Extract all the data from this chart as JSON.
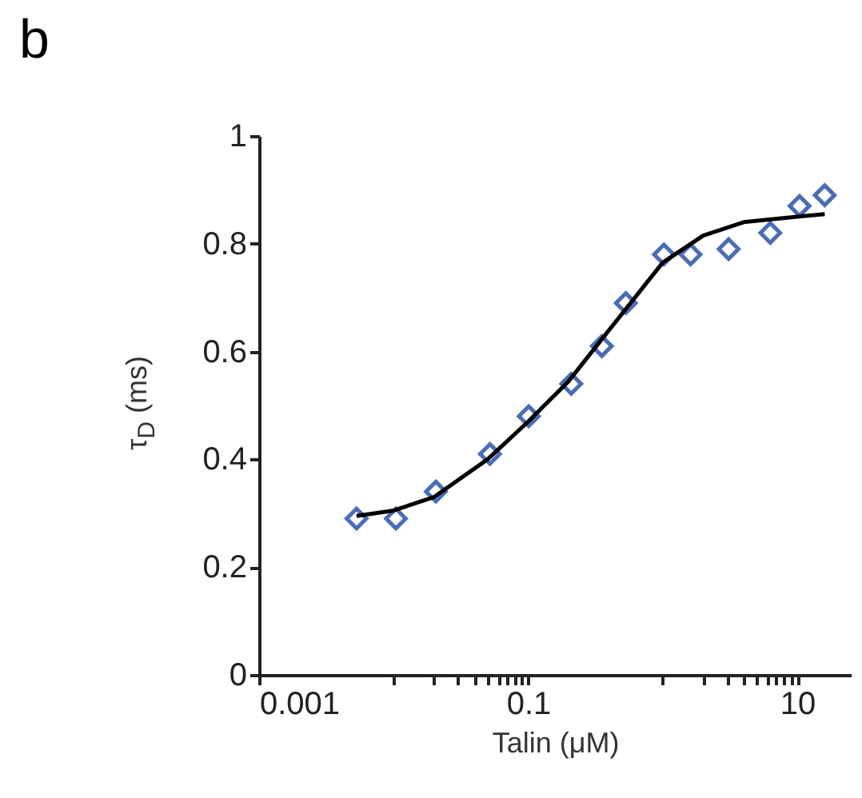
{
  "chart_data": {
    "type": "scatter",
    "title": "b",
    "xlabel": "Talin (μM)",
    "ylabel": "τ$_{D}$ (ms)",
    "log": "x",
    "xlim": [
      0.001,
      25
    ],
    "ylim": [
      0,
      1
    ],
    "xticks": [
      0.001,
      {
        "value": 0.01,
        "label": null
      },
      {
        "value": 0.02,
        "label": null
      },
      {
        "value": 0.03,
        "label": null
      },
      {
        "value": 0.04,
        "label": null
      },
      {
        "value": 0.05,
        "label": null
      },
      {
        "value": 0.06,
        "label": null
      },
      {
        "value": 0.07,
        "label": null
      },
      {
        "value": 0.08,
        "label": null
      },
      {
        "value": 0.09,
        "label": null
      },
      0.1,
      {
        "value": 1,
        "label": null
      },
      {
        "value": 2,
        "label": null
      },
      {
        "value": 3,
        "label": null
      },
      {
        "value": 4,
        "label": null
      },
      {
        "value": 5,
        "label": null
      },
      {
        "value": 6,
        "label": null
      },
      {
        "value": 7,
        "label": null
      },
      {
        "value": 8,
        "label": null
      },
      {
        "value": 9,
        "label": null
      },
      10
    ],
    "yticks": [
      0,
      0.2,
      0.4,
      0.6,
      0.8,
      1
    ],
    "grid": false,
    "series": [
      {
        "type": "scatter",
        "marker": "diamond",
        "color": "#4a6db5",
        "x": [
          0.0053,
          0.0104,
          0.0206,
          0.052,
          0.101,
          0.209,
          0.353,
          0.532,
          1.02,
          1.61,
          3.09,
          6.3,
          10.4,
          16.0
        ],
        "values": [
          0.29,
          0.29,
          0.34,
          0.41,
          0.48,
          0.54,
          0.61,
          0.69,
          0.78,
          0.78,
          0.79,
          0.82,
          0.87,
          0.89
        ]
      },
      {
        "type": "line",
        "marker": "none",
        "line_style": "solid",
        "color": "#000000",
        "x": [
          0.0053,
          0.01,
          0.02,
          0.05,
          0.1,
          0.2,
          0.4,
          1,
          2,
          4,
          10,
          16
        ],
        "values": [
          0.295,
          0.305,
          0.33,
          0.4,
          0.47,
          0.545,
          0.64,
          0.765,
          0.815,
          0.84,
          0.85,
          0.855
        ]
      }
    ]
  }
}
